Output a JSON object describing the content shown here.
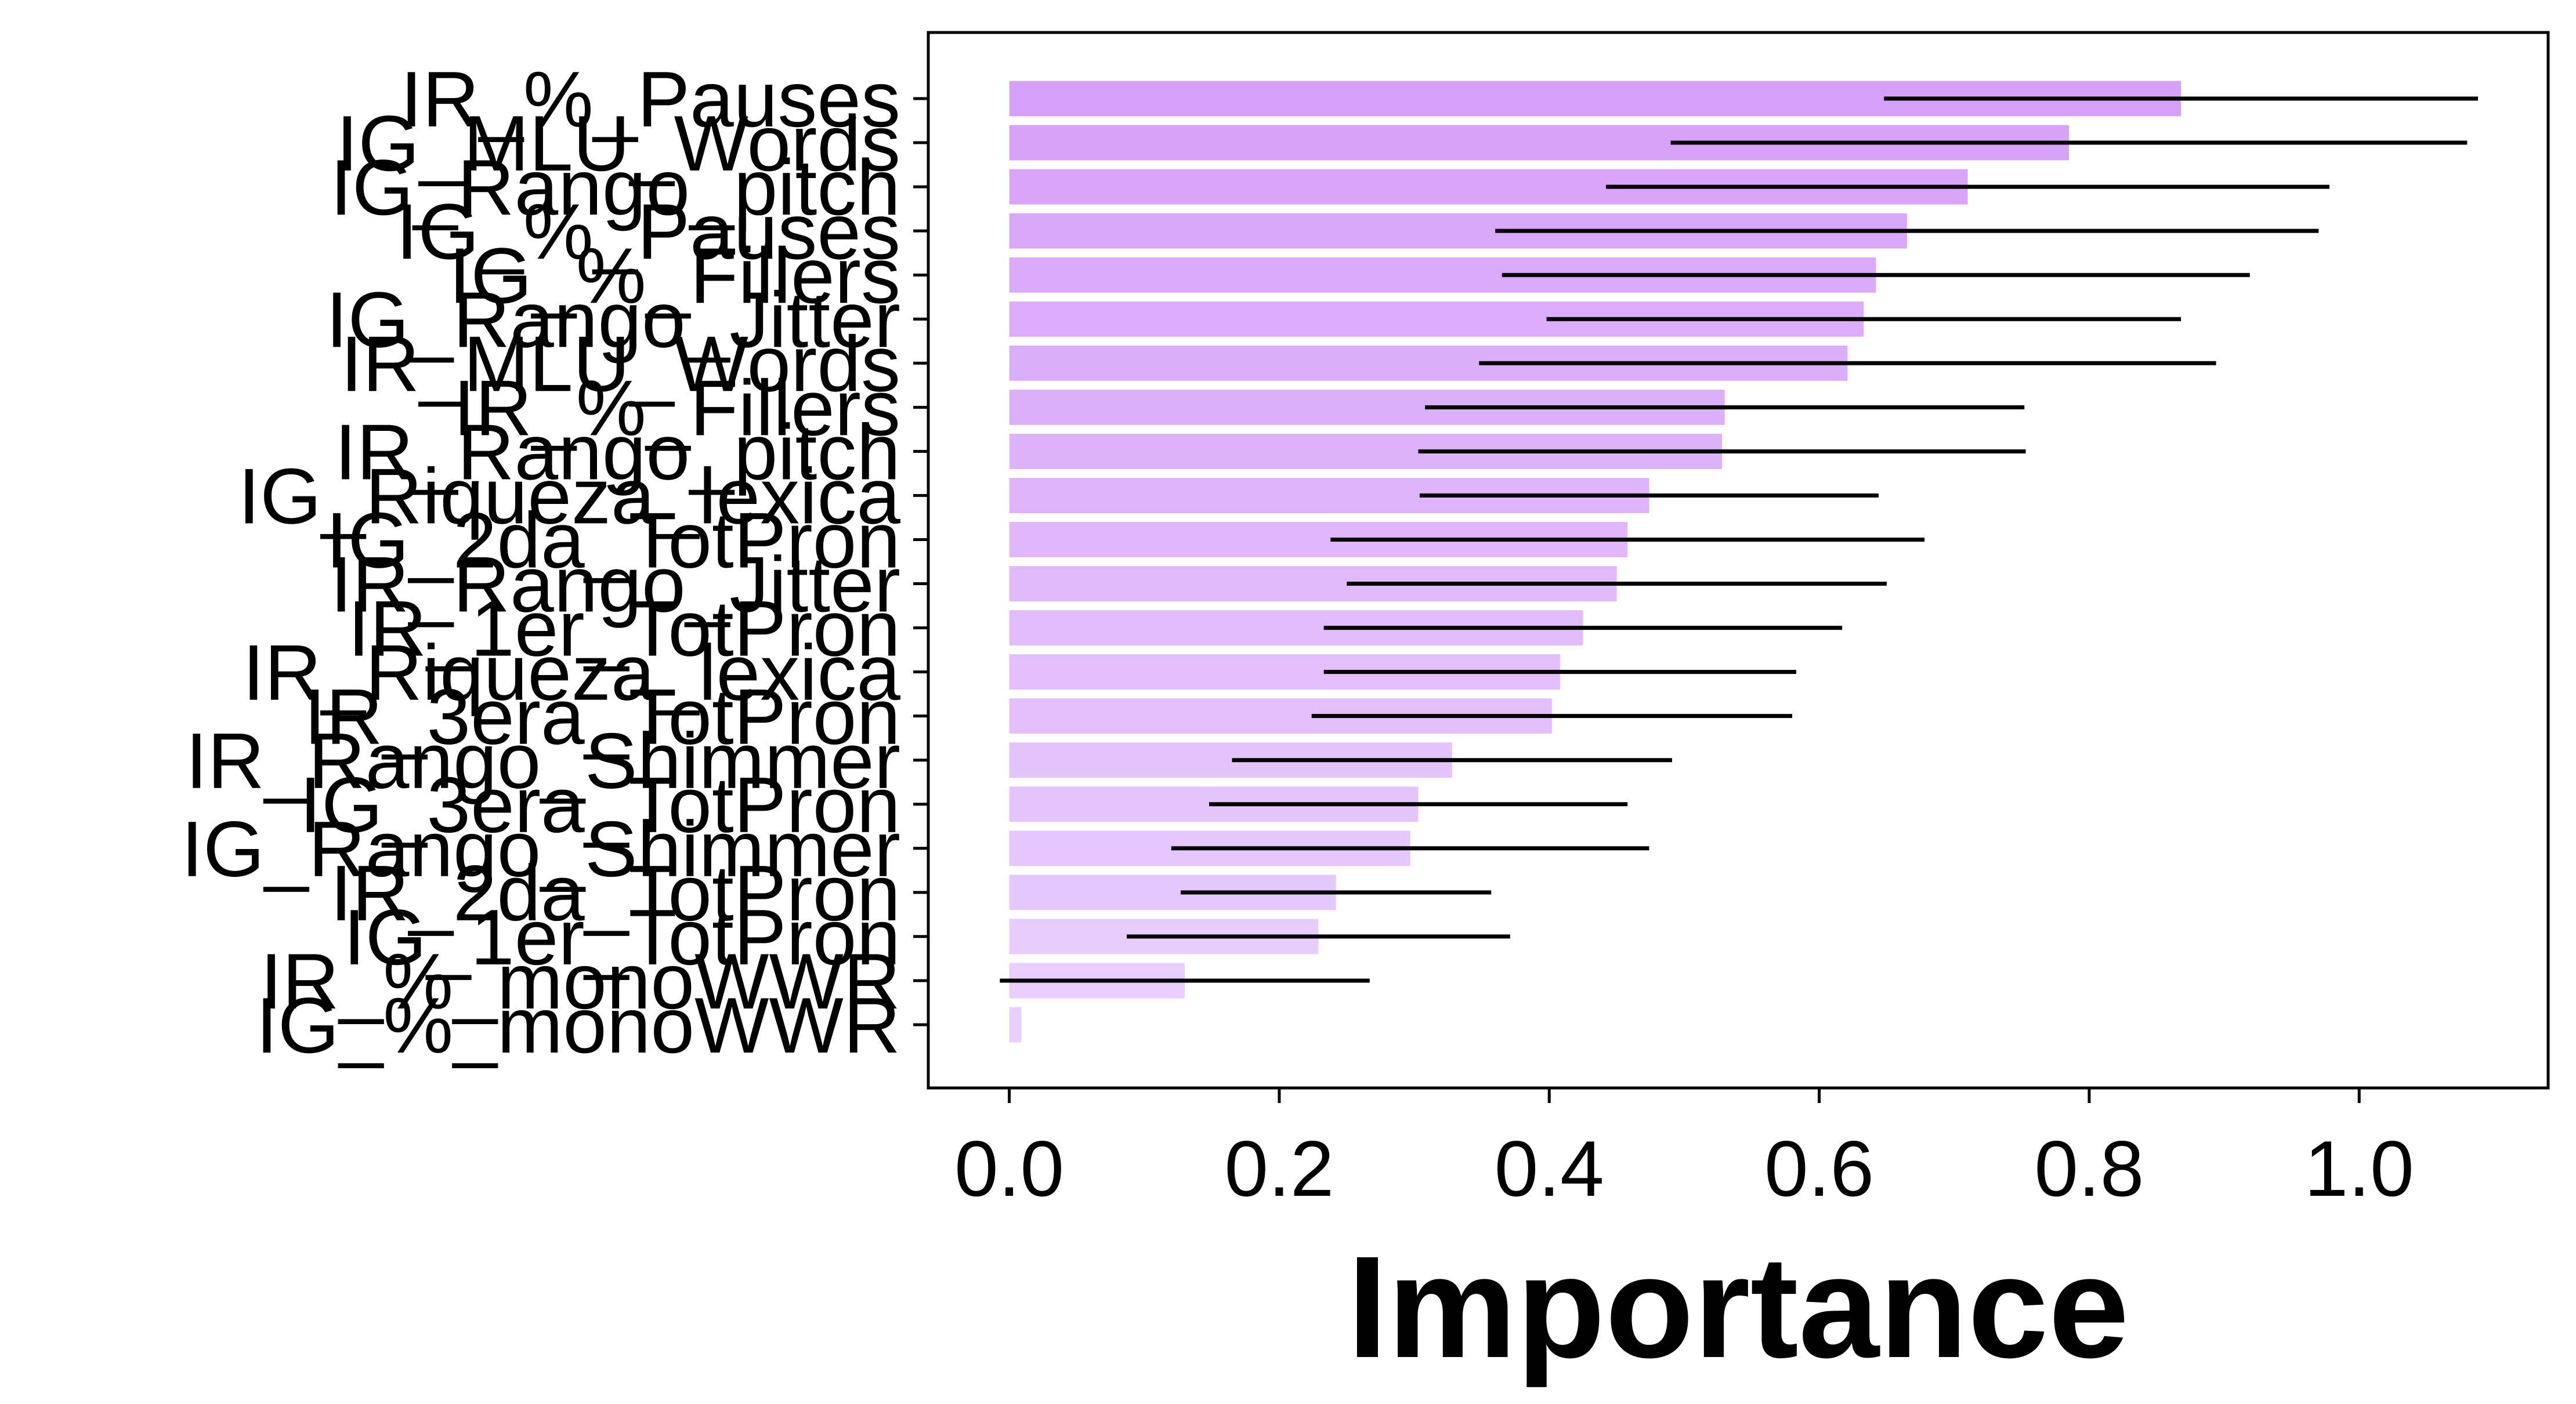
{
  "chart_data": {
    "type": "bar",
    "orientation": "horizontal",
    "categories": [
      "IR_%_Pauses",
      "IG_MLU_Words",
      "IG_Rango_pitch",
      "IG_%_Pauses",
      "IG_%_Fillers",
      "IG_Rango_Jitter",
      "IR_MLU_Words",
      "IR_%_Fillers",
      "IR_Rango_pitch",
      "IG_Riqueza_lexica",
      "IG_2da_TotPron",
      "IR_Rango_Jitter",
      "IR_1er_TotPron",
      "IR_Riqueza_lexica",
      "IR_3era_TotPron",
      "IR_Rango_Shimmer",
      "IG_3era_TotPron",
      "IG_Rango_Shimmer",
      "IR_2da_TotPron",
      "IG_1er_TotPron",
      "IR_%_monoWWR",
      "IG_%_monoWWR"
    ],
    "series": [
      {
        "values": [
          0.868,
          0.785,
          0.71,
          0.665,
          0.642,
          0.633,
          0.621,
          0.53,
          0.528,
          0.474,
          0.458,
          0.45,
          0.425,
          0.408,
          0.402,
          0.328,
          0.303,
          0.297,
          0.242,
          0.229,
          0.13,
          0.009
        ],
        "error": [
          0.22,
          0.295,
          0.268,
          0.305,
          0.277,
          0.235,
          0.273,
          0.222,
          0.225,
          0.17,
          0.22,
          0.2,
          0.192,
          0.175,
          0.178,
          0.163,
          0.155,
          0.177,
          0.115,
          0.142,
          0.137,
          0
        ]
      }
    ],
    "xlabel": "Importance",
    "ylabel": "",
    "title": "",
    "xlim": [
      -0.06,
      1.14
    ],
    "xticks": [
      "0.0",
      "0.2",
      "0.4",
      "0.6",
      "0.8",
      "1.0"
    ],
    "grid": false,
    "legend": "none",
    "colors": {
      "bar_top": "#d6a1f9",
      "bar_bottom": "#e9d0fc",
      "error_bar": "#000000",
      "axis": "#000000"
    }
  }
}
